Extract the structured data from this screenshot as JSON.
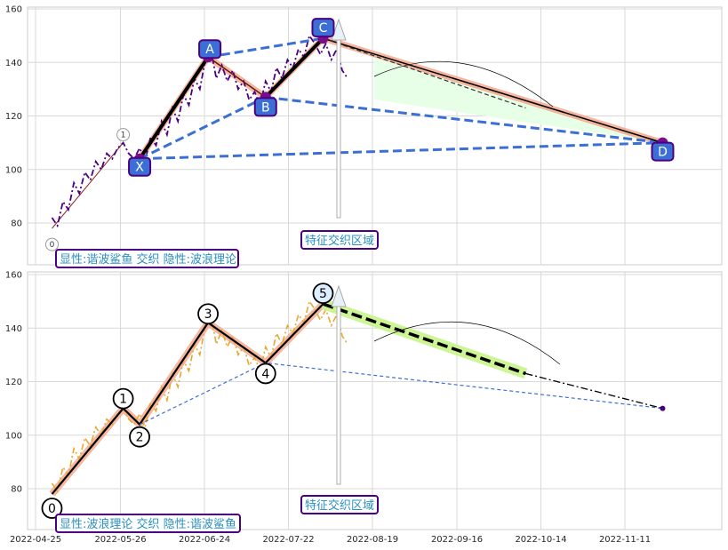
{
  "chart_data": [
    {
      "type": "line",
      "panel": "top",
      "ylim": [
        65,
        160
      ],
      "yticks": [
        "80",
        "100",
        "120",
        "140",
        "160"
      ],
      "grid": true,
      "price_series": {
        "color": "#4b0082",
        "style": "dash-dot",
        "points": [
          [
            "2022-05-01",
            82
          ],
          [
            "2022-05-03",
            79
          ],
          [
            "2022-05-05",
            88
          ],
          [
            "2022-05-07",
            85
          ],
          [
            "2022-05-09",
            95
          ],
          [
            "2022-05-11",
            91
          ],
          [
            "2022-05-13",
            99
          ],
          [
            "2022-05-15",
            96
          ],
          [
            "2022-05-17",
            103
          ],
          [
            "2022-05-19",
            100
          ],
          [
            "2022-05-21",
            106
          ],
          [
            "2022-05-23",
            104
          ],
          [
            "2022-05-25",
            108
          ],
          [
            "2022-05-27",
            110
          ],
          [
            "2022-05-29",
            106
          ],
          [
            "2022-05-31",
            104
          ],
          [
            "2022-06-02",
            108
          ],
          [
            "2022-06-04",
            103
          ],
          [
            "2022-06-06",
            112
          ],
          [
            "2022-06-08",
            109
          ],
          [
            "2022-06-10",
            118
          ],
          [
            "2022-06-12",
            113
          ],
          [
            "2022-06-14",
            123
          ],
          [
            "2022-06-16",
            118
          ],
          [
            "2022-06-18",
            128
          ],
          [
            "2022-06-20",
            124
          ],
          [
            "2022-06-22",
            134
          ],
          [
            "2022-06-24",
            130
          ],
          [
            "2022-06-26",
            141
          ],
          [
            "2022-06-28",
            145
          ],
          [
            "2022-06-30",
            134
          ],
          [
            "2022-07-02",
            139
          ],
          [
            "2022-07-04",
            133
          ],
          [
            "2022-07-06",
            137
          ],
          [
            "2022-07-08",
            130
          ],
          [
            "2022-07-10",
            133
          ],
          [
            "2022-07-12",
            126
          ],
          [
            "2022-07-14",
            129
          ],
          [
            "2022-07-16",
            124
          ],
          [
            "2022-07-18",
            133
          ],
          [
            "2022-07-20",
            129
          ],
          [
            "2022-07-22",
            138
          ],
          [
            "2022-07-24",
            134
          ],
          [
            "2022-07-26",
            141
          ],
          [
            "2022-07-28",
            138
          ],
          [
            "2022-07-30",
            145
          ],
          [
            "2022-08-01",
            142
          ],
          [
            "2022-08-03",
            150
          ],
          [
            "2022-08-05",
            147
          ],
          [
            "2022-08-07",
            143
          ],
          [
            "2022-08-09",
            147
          ],
          [
            "2022-08-11",
            141
          ],
          [
            "2022-08-13",
            145
          ],
          [
            "2022-08-15",
            137
          ],
          [
            "2022-08-17",
            134
          ]
        ]
      },
      "thin_line": {
        "color": "#8b1a1a",
        "points": [
          [
            "2022-05-01",
            78
          ],
          [
            "2022-05-27",
            110
          ]
        ]
      },
      "harmonic_points": [
        {
          "label": "X",
          "date": "2022-06-02",
          "value": 104
        },
        {
          "label": "A",
          "date": "2022-06-27",
          "value": 142
        },
        {
          "label": "B",
          "date": "2022-07-18",
          "value": 127
        },
        {
          "label": "C",
          "date": "2022-08-08",
          "value": 149
        },
        {
          "label": "D",
          "date": "2022-12-10",
          "value": 110
        }
      ],
      "black_segments": [
        [
          "X",
          "A"
        ],
        [
          "B",
          "C"
        ]
      ],
      "salmon_segments": [
        [
          "X",
          "A"
        ],
        [
          "A",
          "B"
        ],
        [
          "B",
          "C"
        ],
        [
          "C",
          "D"
        ]
      ],
      "blue_dashed": [
        [
          "X",
          "B"
        ],
        [
          "X",
          "D"
        ],
        [
          "A",
          "C"
        ],
        [
          "B",
          "D"
        ]
      ],
      "projection": {
        "from": [
          "2022-08-08",
          149
        ],
        "to": [
          "2022-10-21",
          123
        ]
      },
      "small_markers": [
        {
          "label": "1",
          "date": "2022-05-27",
          "value": 113
        },
        {
          "label": "0",
          "date": "2022-05-01",
          "value": 72
        }
      ],
      "annotation": "特征交织区域",
      "label_box": "显性:谐波鲨鱼 交织 隐性:波浪理论"
    },
    {
      "type": "line",
      "panel": "bottom",
      "ylim": [
        65,
        160
      ],
      "yticks": [
        "80",
        "100",
        "120",
        "140",
        "160"
      ],
      "xticks": [
        "2022-04-25",
        "2022-05-26",
        "2022-06-24",
        "2022-07-22",
        "2022-08-19",
        "2022-09-16",
        "2022-10-14",
        "2022-11-11"
      ],
      "grid": true,
      "price_series": {
        "color": "#e8a830",
        "style": "dash-dot",
        "points": [
          [
            "2022-05-01",
            82
          ],
          [
            "2022-05-03",
            79
          ],
          [
            "2022-05-05",
            88
          ],
          [
            "2022-05-07",
            85
          ],
          [
            "2022-05-09",
            95
          ],
          [
            "2022-05-11",
            91
          ],
          [
            "2022-05-13",
            99
          ],
          [
            "2022-05-15",
            96
          ],
          [
            "2022-05-17",
            103
          ],
          [
            "2022-05-19",
            100
          ],
          [
            "2022-05-21",
            106
          ],
          [
            "2022-05-23",
            104
          ],
          [
            "2022-05-25",
            108
          ],
          [
            "2022-05-27",
            110
          ],
          [
            "2022-05-29",
            106
          ],
          [
            "2022-05-31",
            104
          ],
          [
            "2022-06-02",
            108
          ],
          [
            "2022-06-04",
            103
          ],
          [
            "2022-06-06",
            112
          ],
          [
            "2022-06-08",
            109
          ],
          [
            "2022-06-10",
            118
          ],
          [
            "2022-06-12",
            113
          ],
          [
            "2022-06-14",
            123
          ],
          [
            "2022-06-16",
            118
          ],
          [
            "2022-06-18",
            128
          ],
          [
            "2022-06-20",
            124
          ],
          [
            "2022-06-22",
            134
          ],
          [
            "2022-06-24",
            130
          ],
          [
            "2022-06-26",
            141
          ],
          [
            "2022-06-28",
            145
          ],
          [
            "2022-06-30",
            134
          ],
          [
            "2022-07-02",
            139
          ],
          [
            "2022-07-04",
            133
          ],
          [
            "2022-07-06",
            137
          ],
          [
            "2022-07-08",
            130
          ],
          [
            "2022-07-10",
            133
          ],
          [
            "2022-07-12",
            126
          ],
          [
            "2022-07-14",
            129
          ],
          [
            "2022-07-16",
            124
          ],
          [
            "2022-07-18",
            133
          ],
          [
            "2022-07-20",
            129
          ],
          [
            "2022-07-22",
            138
          ],
          [
            "2022-07-24",
            134
          ],
          [
            "2022-07-26",
            141
          ],
          [
            "2022-07-28",
            138
          ],
          [
            "2022-07-30",
            145
          ],
          [
            "2022-08-01",
            142
          ],
          [
            "2022-08-03",
            150
          ],
          [
            "2022-08-05",
            147
          ],
          [
            "2022-08-07",
            143
          ],
          [
            "2022-08-09",
            147
          ],
          [
            "2022-08-11",
            141
          ],
          [
            "2022-08-13",
            145
          ],
          [
            "2022-08-15",
            137
          ],
          [
            "2022-08-17",
            134
          ]
        ]
      },
      "wave_points": [
        {
          "label": "0",
          "date": "2022-05-01",
          "value": 78
        },
        {
          "label": "1",
          "date": "2022-05-27",
          "value": 110
        },
        {
          "label": "2",
          "date": "2022-06-02",
          "value": 104
        },
        {
          "label": "3",
          "date": "2022-06-27",
          "value": 142
        },
        {
          "label": "4",
          "date": "2022-07-18",
          "value": 127
        },
        {
          "label": "5",
          "date": "2022-08-08",
          "value": 149
        }
      ],
      "projection": {
        "from": [
          "2022-08-08",
          149
        ],
        "to": [
          "2022-10-21",
          123
        ]
      },
      "extension": {
        "from": [
          "2022-10-21",
          123
        ],
        "to": [
          "2022-12-10",
          110
        ]
      },
      "blue_thin_dashed": {
        "from": [
          "2022-06-02",
          104
        ],
        "via": [
          "2022-07-18",
          127
        ],
        "to": [
          "2022-12-10",
          110
        ]
      },
      "annotation": "特征交织区域",
      "label_box": "显性:波浪理论 交织 隐性:谐波鲨鱼"
    }
  ]
}
